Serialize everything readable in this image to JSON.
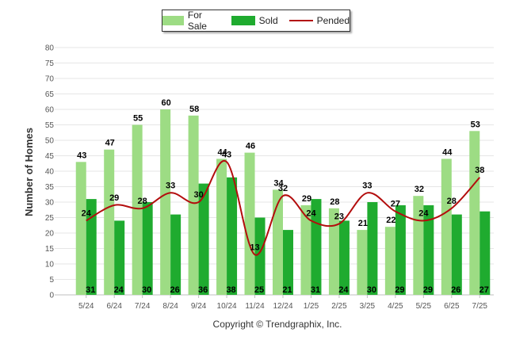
{
  "legend": {
    "for_sale": "For Sale",
    "sold": "Sold",
    "pended": "Pended"
  },
  "copyright": "Copyright © Trendgraphix, Inc.",
  "colors": {
    "for_sale": "#9ddc84",
    "sold": "#1fab2f",
    "pended": "#b30d0d"
  },
  "chart_data": {
    "type": "bar",
    "categories": [
      "5/24",
      "6/24",
      "7/24",
      "8/24",
      "9/24",
      "10/24",
      "11/24",
      "12/24",
      "1/25",
      "2/25",
      "3/25",
      "4/25",
      "5/25",
      "6/25",
      "7/25"
    ],
    "series": [
      {
        "name": "For Sale",
        "type": "bar",
        "values": [
          43,
          47,
          55,
          60,
          58,
          44,
          46,
          34,
          29,
          28,
          21,
          22,
          32,
          44,
          53
        ]
      },
      {
        "name": "Sold",
        "type": "bar",
        "values": [
          31,
          24,
          30,
          26,
          36,
          38,
          25,
          21,
          31,
          24,
          30,
          29,
          29,
          26,
          27
        ]
      },
      {
        "name": "Pended",
        "type": "line",
        "values": [
          24,
          29,
          28,
          33,
          30,
          43,
          13,
          32,
          24,
          23,
          33,
          27,
          24,
          28,
          38
        ]
      }
    ],
    "ylabel": "Number of Homes",
    "xlabel": "",
    "ylim": [
      0,
      80
    ],
    "yticks": [
      0,
      5,
      10,
      15,
      20,
      25,
      30,
      35,
      40,
      45,
      50,
      55,
      60,
      65,
      70,
      75,
      80
    ],
    "grid": true,
    "legend_position": "top"
  }
}
